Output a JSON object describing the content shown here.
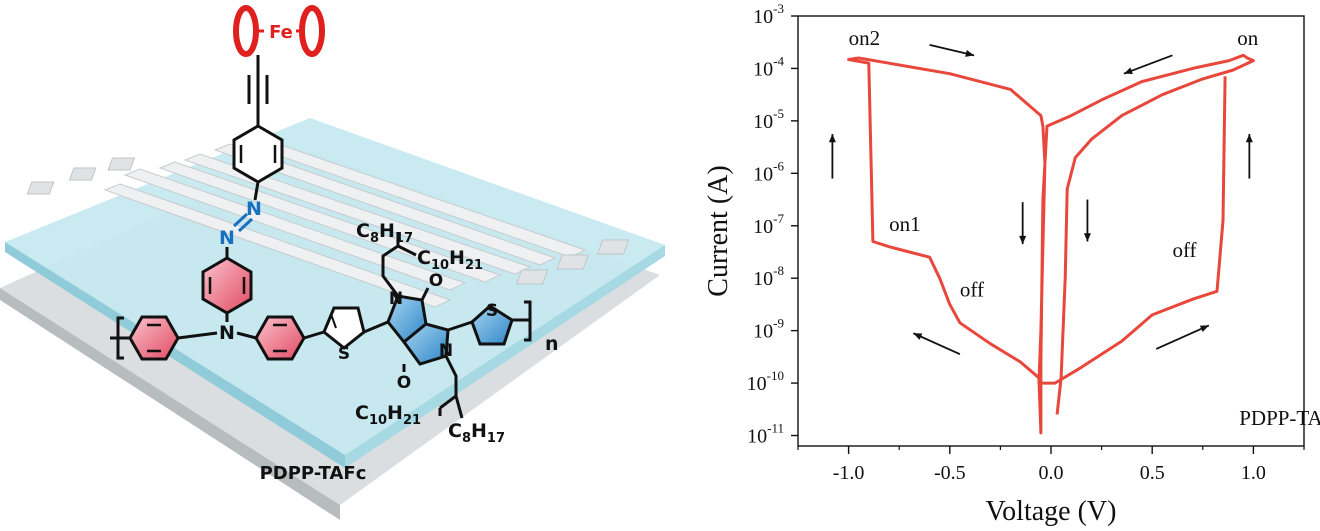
{
  "molecule": {
    "label": "PDPP-TAFc",
    "atoms": {
      "fe": "Fe",
      "n": "N",
      "s": "S",
      "o": "O",
      "repeat": "n"
    },
    "substituents": {
      "c8": "C",
      "c8_sub": "8",
      "c10": "C",
      "c10_sub": "10",
      "h": "H",
      "h17_sub": "17",
      "h21_sub": "21"
    },
    "colors": {
      "ring_red": "#e8536b",
      "ring_blue": "#3f93cf",
      "ferrocene": "#e0201e",
      "azo": "#1a6fc1",
      "substrate": "#c5e8f0"
    }
  },
  "chart_data": {
    "type": "line",
    "xlabel": "Voltage (V)",
    "ylabel": "Current (A)",
    "xlim": [
      -1.25,
      1.25
    ],
    "ylim_log10": [
      -11.2,
      -3
    ],
    "y_scale": "log",
    "x_ticks": [
      -1.0,
      -0.5,
      0.0,
      0.5,
      1.0
    ],
    "x_tick_labels": [
      "-1.0",
      "-0.5",
      "0.0",
      "0.5",
      "1.0"
    ],
    "y_tick_labels": [
      {
        "exp": -3,
        "base": "10",
        "sup": "-3"
      },
      {
        "exp": -4,
        "base": "10",
        "sup": "-4"
      },
      {
        "exp": -5,
        "base": "10",
        "sup": "-5"
      },
      {
        "exp": -6,
        "base": "10",
        "sup": "-6"
      },
      {
        "exp": -7,
        "base": "10",
        "sup": "-7"
      },
      {
        "exp": -8,
        "base": "10",
        "sup": "-8"
      },
      {
        "exp": -9,
        "base": "10",
        "sup": "-9"
      },
      {
        "exp": -10,
        "base": "10",
        "sup": "-10"
      },
      {
        "exp": -11,
        "base": "10",
        "sup": "-11"
      }
    ],
    "line_color": "#e8473c",
    "series_points": [
      [
        0.03,
        -10.6
      ],
      [
        0.05,
        -9.9
      ],
      [
        0.07,
        -8.0
      ],
      [
        0.08,
        -6.3
      ],
      [
        0.12,
        -5.7
      ],
      [
        0.2,
        -5.35
      ],
      [
        0.35,
        -4.9
      ],
      [
        0.55,
        -4.5
      ],
      [
        0.75,
        -4.2
      ],
      [
        0.9,
        -4.03
      ],
      [
        1.0,
        -3.85
      ],
      [
        0.97,
        -3.8
      ],
      [
        0.95,
        -3.75
      ],
      [
        0.88,
        -3.85
      ],
      [
        0.7,
        -4.0
      ],
      [
        0.45,
        -4.25
      ],
      [
        0.25,
        -4.6
      ],
      [
        0.1,
        -4.9
      ],
      [
        -0.02,
        -5.1
      ],
      [
        -0.04,
        -6.5
      ],
      [
        -0.05,
        -9.6
      ],
      [
        -0.05,
        -10.95
      ],
      [
        -0.06,
        -9.9
      ],
      [
        -0.15,
        -9.6
      ],
      [
        -0.3,
        -9.25
      ],
      [
        -0.45,
        -8.85
      ],
      [
        -0.5,
        -8.5
      ],
      [
        -0.55,
        -8.0
      ],
      [
        -0.6,
        -7.6
      ],
      [
        -0.7,
        -7.5
      ],
      [
        -0.8,
        -7.4
      ],
      [
        -0.88,
        -7.3
      ],
      [
        -0.9,
        -3.9
      ],
      [
        -1.0,
        -3.83
      ],
      [
        -0.95,
        -3.8
      ],
      [
        -0.8,
        -3.9
      ],
      [
        -0.5,
        -4.1
      ],
      [
        -0.2,
        -4.4
      ],
      [
        -0.05,
        -4.9
      ],
      [
        -0.04,
        -5.1
      ],
      [
        -0.03,
        -5.8
      ],
      [
        -0.05,
        -9.0
      ],
      [
        -0.06,
        -10.0
      ],
      [
        0.02,
        -10.0
      ],
      [
        0.15,
        -9.7
      ],
      [
        0.35,
        -9.2
      ],
      [
        0.5,
        -8.7
      ],
      [
        0.7,
        -8.4
      ],
      [
        0.82,
        -8.25
      ],
      [
        0.85,
        -6.9
      ],
      [
        0.86,
        -4.15
      ]
    ],
    "annotations": [
      {
        "text": "on2",
        "x": -1.0,
        "y": -3.55
      },
      {
        "text": "on",
        "x": 0.92,
        "y": -3.55
      },
      {
        "text": "on1",
        "x": -0.8,
        "y": -7.1
      },
      {
        "text": "off",
        "x": -0.45,
        "y": -8.35
      },
      {
        "text": "off",
        "x": 0.6,
        "y": -7.6
      },
      {
        "text": "PDPP-TAFc",
        "x": 0.93,
        "y": -10.8
      }
    ],
    "arrows": [
      {
        "from": [
          -0.6,
          -3.55
        ],
        "to": [
          -0.38,
          -3.75
        ]
      },
      {
        "from": [
          0.6,
          -3.75
        ],
        "to": [
          0.36,
          -4.1
        ]
      },
      {
        "from": [
          -1.08,
          -6.1
        ],
        "to": [
          -1.08,
          -5.25
        ]
      },
      {
        "from": [
          0.98,
          -6.1
        ],
        "to": [
          0.98,
          -5.25
        ]
      },
      {
        "from": [
          -0.14,
          -6.55
        ],
        "to": [
          -0.14,
          -7.35
        ]
      },
      {
        "from": [
          0.18,
          -6.5
        ],
        "to": [
          0.18,
          -7.3
        ]
      },
      {
        "from": [
          -0.45,
          -9.45
        ],
        "to": [
          -0.68,
          -9.05
        ]
      },
      {
        "from": [
          0.52,
          -9.35
        ],
        "to": [
          0.78,
          -8.9
        ]
      }
    ],
    "grid": false,
    "legend": "none"
  }
}
